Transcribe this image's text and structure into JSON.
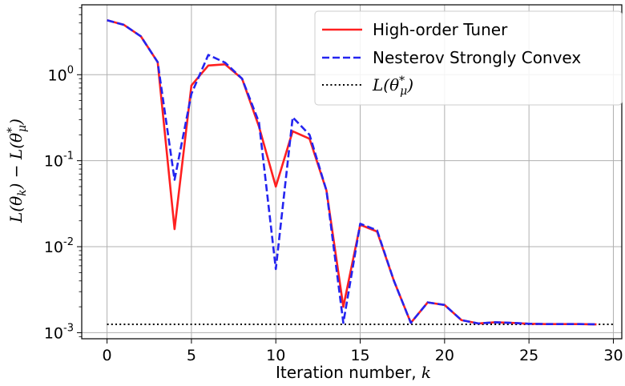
{
  "chart_data": {
    "type": "line",
    "xlabel": "Iteration number, ",
    "xlabel_var": "k",
    "ylabel": "L(θ_k) − L(θ*_μ)",
    "xlim": [
      -1.5,
      30.5
    ],
    "ylim": [
      0.00085,
      6.5
    ],
    "yscale": "log",
    "grid": true,
    "legend_position": "upper right",
    "x_ticks": [
      0,
      5,
      10,
      15,
      20,
      25,
      30
    ],
    "x_tick_labels": [
      "0",
      "5",
      "10",
      "15",
      "20",
      "25",
      "30"
    ],
    "y_ticks": [
      0.001,
      0.01,
      0.1,
      1
    ],
    "y_tick_labels": [
      {
        "base": "10",
        "exp": "-3"
      },
      {
        "base": "10",
        "exp": "-2"
      },
      {
        "base": "10",
        "exp": "-1"
      },
      {
        "base": "10",
        "exp": "0"
      }
    ],
    "series": [
      {
        "name": "High-order Tuner",
        "color": "#ff2020",
        "style": "solid",
        "x": [
          0,
          1,
          2,
          3,
          4,
          5,
          6,
          7,
          8,
          9,
          10,
          11,
          12,
          13,
          14,
          15,
          16,
          17,
          18,
          19,
          20,
          21,
          22,
          23,
          24,
          25,
          26,
          27,
          28,
          29
        ],
        "y": [
          4.3,
          3.8,
          2.8,
          1.4,
          0.016,
          0.75,
          1.28,
          1.32,
          0.9,
          0.25,
          0.05,
          0.22,
          0.18,
          0.045,
          0.002,
          0.018,
          0.015,
          0.004,
          0.0013,
          0.00225,
          0.0021,
          0.0014,
          0.00128,
          0.00132,
          0.0013,
          0.00127,
          0.00126,
          0.00126,
          0.00126,
          0.00125
        ]
      },
      {
        "name": "Nesterov Strongly Convex",
        "color": "#2424f0",
        "style": "dashed",
        "x": [
          0,
          1,
          2,
          3,
          4,
          5,
          6,
          7,
          8,
          9,
          10,
          11,
          12,
          13,
          14,
          15,
          16,
          17,
          18,
          19,
          20,
          21,
          22,
          23,
          24,
          25,
          26,
          27,
          28,
          29
        ],
        "y": [
          4.3,
          3.8,
          2.8,
          1.4,
          0.06,
          0.6,
          1.7,
          1.38,
          0.9,
          0.28,
          0.0055,
          0.32,
          0.2,
          0.045,
          0.0013,
          0.0185,
          0.0155,
          0.004,
          0.0013,
          0.00225,
          0.0021,
          0.0014,
          0.00128,
          0.00132,
          0.0013,
          0.00127,
          0.00126,
          0.00126,
          0.00126,
          0.00125
        ]
      },
      {
        "name": "L(θ*_μ)",
        "color": "#000000",
        "style": "dotted",
        "x": [
          0,
          30
        ],
        "y": [
          0.00125,
          0.00125
        ]
      }
    ]
  }
}
